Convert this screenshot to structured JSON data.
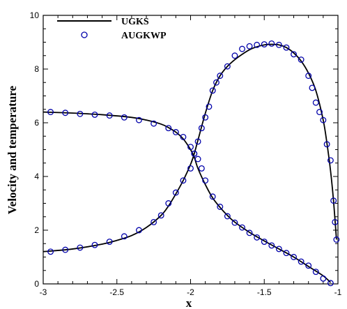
{
  "chart_data": {
    "type": "line",
    "xlabel": "x",
    "ylabel": "Velocity and temperature",
    "xlim": [
      -3,
      -1
    ],
    "ylim": [
      0,
      10
    ],
    "xticks": [
      -3,
      -2.5,
      -2,
      -1.5,
      -1
    ],
    "yticks": [
      0,
      2,
      4,
      6,
      8,
      10
    ],
    "legend_position": "top-left",
    "series": [
      {
        "name": "UGKS",
        "style": "solid-line",
        "color": "#000000",
        "curves": [
          {
            "x": [
              -3.0,
              -2.8,
              -2.6,
              -2.4,
              -2.3,
              -2.2,
              -2.15,
              -2.1,
              -2.05,
              -2.0,
              -1.975,
              -1.95,
              -1.9,
              -1.85,
              -1.8,
              -1.75,
              -1.7,
              -1.6,
              -1.5,
              -1.4,
              -1.3,
              -1.2,
              -1.1,
              -1.05
            ],
            "y": [
              6.4,
              6.36,
              6.3,
              6.2,
              6.1,
              5.95,
              5.82,
              5.65,
              5.4,
              5.0,
              4.72,
              4.3,
              3.7,
              3.2,
              2.85,
              2.55,
              2.3,
              1.92,
              1.6,
              1.3,
              1.0,
              0.65,
              0.3,
              0.05
            ]
          },
          {
            "x": [
              -3.0,
              -2.8,
              -2.6,
              -2.5,
              -2.4,
              -2.3,
              -2.2,
              -2.15,
              -2.1,
              -2.05,
              -2.0,
              -1.975,
              -1.95,
              -1.9,
              -1.85,
              -1.8,
              -1.75,
              -1.7,
              -1.65,
              -1.6,
              -1.55,
              -1.5,
              -1.45,
              -1.4,
              -1.35,
              -1.3,
              -1.25,
              -1.2,
              -1.15,
              -1.1,
              -1.075,
              -1.05,
              -1.03,
              -1.01
            ],
            "y": [
              1.2,
              1.3,
              1.48,
              1.62,
              1.8,
              2.1,
              2.55,
              2.9,
              3.35,
              3.85,
              4.45,
              4.85,
              5.35,
              6.35,
              7.2,
              7.75,
              8.1,
              8.35,
              8.55,
              8.72,
              8.83,
              8.9,
              8.92,
              8.9,
              8.8,
              8.6,
              8.3,
              7.85,
              7.2,
              6.1,
              5.25,
              4.2,
              3.1,
              1.65
            ]
          }
        ]
      },
      {
        "name": "AUGKWP",
        "style": "open-circle",
        "color": "#0000aa",
        "curves": [
          {
            "x": [
              -2.95,
              -2.85,
              -2.75,
              -2.65,
              -2.55,
              -2.45,
              -2.35,
              -2.25,
              -2.15,
              -2.1,
              -2.05,
              -2.0,
              -1.975,
              -1.95,
              -1.925,
              -1.9,
              -1.85,
              -1.8,
              -1.75,
              -1.7,
              -1.65,
              -1.6,
              -1.55,
              -1.5,
              -1.45,
              -1.4,
              -1.35,
              -1.3,
              -1.25,
              -1.2,
              -1.15,
              -1.1,
              -1.05
            ],
            "y": [
              6.4,
              6.37,
              6.33,
              6.3,
              6.27,
              6.2,
              6.1,
              5.97,
              5.8,
              5.65,
              5.47,
              5.1,
              4.85,
              4.65,
              4.3,
              3.85,
              3.25,
              2.87,
              2.52,
              2.28,
              2.1,
              1.9,
              1.73,
              1.57,
              1.43,
              1.3,
              1.15,
              1.0,
              0.83,
              0.68,
              0.45,
              0.2,
              0.03
            ]
          },
          {
            "x": [
              -2.95,
              -2.85,
              -2.75,
              -2.65,
              -2.55,
              -2.45,
              -2.35,
              -2.25,
              -2.2,
              -2.15,
              -2.1,
              -2.05,
              -2.0,
              -1.975,
              -1.95,
              -1.925,
              -1.9,
              -1.875,
              -1.85,
              -1.825,
              -1.8,
              -1.75,
              -1.7,
              -1.65,
              -1.6,
              -1.55,
              -1.5,
              -1.45,
              -1.4,
              -1.35,
              -1.3,
              -1.25,
              -1.2,
              -1.175,
              -1.15,
              -1.125,
              -1.1,
              -1.075,
              -1.05,
              -1.03,
              -1.02,
              -1.01
            ],
            "y": [
              1.2,
              1.27,
              1.35,
              1.45,
              1.57,
              1.77,
              2.0,
              2.3,
              2.55,
              3.0,
              3.4,
              3.85,
              4.3,
              4.85,
              5.3,
              5.8,
              6.2,
              6.6,
              7.2,
              7.5,
              7.75,
              8.1,
              8.5,
              8.75,
              8.85,
              8.9,
              8.92,
              8.95,
              8.9,
              8.8,
              8.55,
              8.35,
              7.75,
              7.3,
              6.75,
              6.4,
              6.1,
              5.2,
              4.6,
              3.1,
              2.3,
              1.65
            ]
          }
        ]
      }
    ]
  }
}
